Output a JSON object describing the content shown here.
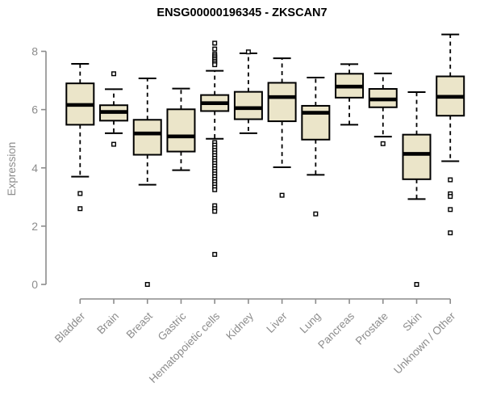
{
  "chart_data": {
    "type": "boxplot",
    "title": "ENSG00000196345 - ZKSCAN7",
    "xlabel": "",
    "ylabel": "Expression",
    "ylim": [
      0,
      8
    ],
    "yticks": [
      0,
      2,
      4,
      6,
      8
    ],
    "grid": false,
    "legend": "none",
    "categories": [
      "Bladder",
      "Brain",
      "Breast",
      "Gastric",
      "Hematopoietic cells",
      "Kidney",
      "Liver",
      "Lung",
      "Pancreas",
      "Prostate",
      "Skin",
      "Unknown / Other"
    ],
    "series": [
      {
        "name": "Bladder",
        "whisker_low": 3.7,
        "q1": 5.48,
        "median": 6.16,
        "q3": 6.9,
        "whisker_high": 7.57,
        "outliers": [
          3.12,
          2.6
        ]
      },
      {
        "name": "Brain",
        "whisker_low": 5.19,
        "q1": 5.62,
        "median": 5.92,
        "q3": 6.15,
        "whisker_high": 6.7,
        "outliers": [
          7.23,
          4.81
        ]
      },
      {
        "name": "Breast",
        "whisker_low": 3.42,
        "q1": 4.45,
        "median": 5.18,
        "q3": 5.65,
        "whisker_high": 7.07,
        "outliers": [
          0.0
        ]
      },
      {
        "name": "Gastric",
        "whisker_low": 3.92,
        "q1": 4.56,
        "median": 5.08,
        "q3": 6.01,
        "whisker_high": 6.72,
        "outliers": []
      },
      {
        "name": "Hematopoietic cells",
        "whisker_low": 5.0,
        "q1": 5.95,
        "median": 6.22,
        "q3": 6.5,
        "whisker_high": 7.33,
        "outliers": [
          8.28,
          8.08,
          7.9,
          7.84,
          7.78,
          7.72,
          7.66,
          7.6,
          7.54,
          4.87,
          4.78,
          4.69,
          4.6,
          4.51,
          4.42,
          4.33,
          4.24,
          4.15,
          4.06,
          3.97,
          3.88,
          3.79,
          3.7,
          3.61,
          3.52,
          3.43,
          3.34,
          3.25,
          2.7,
          2.6,
          2.51,
          1.03
        ]
      },
      {
        "name": "Kidney",
        "whisker_low": 5.19,
        "q1": 5.67,
        "median": 6.05,
        "q3": 6.61,
        "whisker_high": 7.93,
        "outliers": [
          7.98
        ]
      },
      {
        "name": "Liver",
        "whisker_low": 4.02,
        "q1": 5.6,
        "median": 6.43,
        "q3": 6.92,
        "whisker_high": 7.76,
        "outliers": [
          3.06
        ]
      },
      {
        "name": "Lung",
        "whisker_low": 3.76,
        "q1": 4.97,
        "median": 5.89,
        "q3": 6.13,
        "whisker_high": 7.1,
        "outliers": [
          2.42
        ]
      },
      {
        "name": "Pancreas",
        "whisker_low": 5.48,
        "q1": 6.41,
        "median": 6.79,
        "q3": 7.23,
        "whisker_high": 7.56,
        "outliers": []
      },
      {
        "name": "Prostate",
        "whisker_low": 5.07,
        "q1": 6.08,
        "median": 6.35,
        "q3": 6.71,
        "whisker_high": 7.24,
        "outliers": [
          4.83
        ]
      },
      {
        "name": "Skin",
        "whisker_low": 2.93,
        "q1": 3.61,
        "median": 4.48,
        "q3": 5.14,
        "whisker_high": 6.6,
        "outliers": [
          0.0
        ]
      },
      {
        "name": "Unknown / Other",
        "whisker_low": 4.23,
        "q1": 5.79,
        "median": 6.44,
        "q3": 7.14,
        "whisker_high": 8.58,
        "outliers": [
          3.59,
          3.11,
          3.02,
          2.57,
          1.77
        ]
      }
    ],
    "colors": {
      "box_fill": "#EBE5C9",
      "box_stroke": "#000000",
      "median": "#000000",
      "whisker": "#000000",
      "outlier_fill": "#FFFFFF",
      "axis": "#8C8C8C",
      "tick_label": "#8C8C8C",
      "title": "#000000",
      "background": "#FFFFFF"
    }
  }
}
